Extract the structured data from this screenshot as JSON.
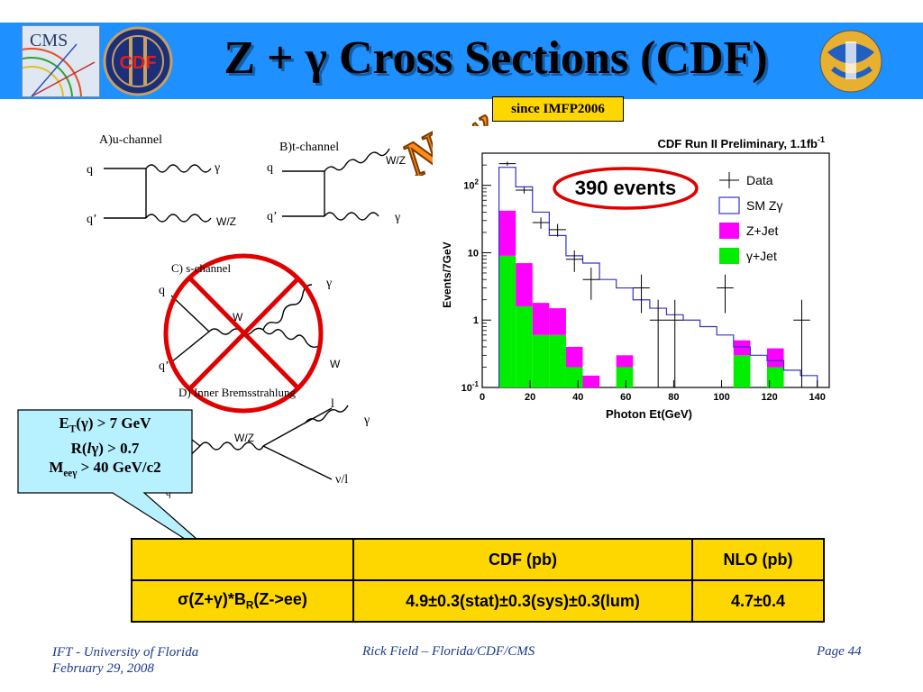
{
  "header": {
    "title": "Z + γ Cross Sections (CDF)",
    "badge_new": "New",
    "since": "since IMFP2006",
    "logos": [
      "cms-logo",
      "cdf-logo",
      "uf-logo"
    ],
    "cms_logo_text": "CMS",
    "cdf_logo_text": "CDF"
  },
  "diagrams": {
    "a": {
      "caption": "A)u-channel",
      "q_in": "q",
      "qbar_in": "q’",
      "out1": "γ",
      "out2": "W/Z"
    },
    "b": {
      "caption": "B)t-channel",
      "q_in": "q",
      "qbar_in": "q’",
      "out1": "W/Z",
      "out2": "γ"
    },
    "c": {
      "caption": "C) s-channel",
      "q_in": "q",
      "qbar_in": "q’",
      "mid": "W",
      "out1": "γ",
      "out2": "W"
    },
    "d": {
      "caption": "D) Inner Bremsstrahlung",
      "mid": "W/Z",
      "out1": "l",
      "out2": "γ",
      "out3": "ν/l",
      "in_letter": "q"
    }
  },
  "cuts": {
    "line1": {
      "pre": "E",
      "sub": "T",
      "post": "(γ) > 7 GeV"
    },
    "line2": {
      "pre": "R(",
      "italic": "l",
      "post": "γ) > 0.7"
    },
    "line3": {
      "pre": "M",
      "sub": "eeγ",
      "post": " > 40 GeV/c2"
    }
  },
  "events_label": "390 events",
  "chart_data": {
    "type": "bar",
    "title": "CDF Run II Preliminary, 1.1fb",
    "title_sup": "-1",
    "xlabel": "Photon Et(GeV)",
    "ylabel": "Events/7GeV",
    "xlim": [
      0,
      145
    ],
    "ylim": [
      0.1,
      300
    ],
    "y_scale": "log",
    "x_ticks": [
      0,
      20,
      40,
      60,
      80,
      100,
      120,
      140
    ],
    "y_ticks": [
      {
        "value": 0.1,
        "base": "10",
        "sup": "-1"
      },
      {
        "value": 1,
        "base": "1",
        "sup": ""
      },
      {
        "value": 10,
        "base": "10",
        "sup": ""
      },
      {
        "value": 100,
        "base": "10",
        "sup": "2"
      }
    ],
    "bin_width": 7,
    "bin_starts": [
      7,
      14,
      21,
      28,
      35,
      42,
      49,
      56,
      63,
      70,
      77,
      84,
      91,
      98,
      105,
      112,
      119,
      126,
      133
    ],
    "legend": [
      {
        "name": "Data",
        "style": "cross"
      },
      {
        "name": "SM Zγ",
        "style": "outline",
        "color": "#3333cc"
      },
      {
        "name": "Z+Jet",
        "style": "fill",
        "color": "#ff00ff"
      },
      {
        "name": "γ+Jet",
        "style": "fill",
        "color": "#00ee00"
      }
    ],
    "legend_position": "top-right",
    "series": [
      {
        "name": "γ+Jet",
        "values": [
          9,
          1.6,
          0.6,
          0.6,
          0.2,
          0,
          0,
          0.2,
          0,
          0,
          0,
          0,
          0,
          0,
          0.3,
          0,
          0.2,
          0,
          0
        ]
      },
      {
        "name": "Z+Jet",
        "values": [
          33,
          5.4,
          1.2,
          0.9,
          0.2,
          0.15,
          0,
          0.1,
          0,
          0,
          0,
          0,
          0,
          0,
          0.2,
          0,
          0.18,
          0,
          0
        ]
      },
      {
        "name": "SM Zγ",
        "values": [
          185,
          95,
          40,
          18,
          9,
          7,
          4,
          3,
          2,
          1.5,
          1.2,
          1,
          0.8,
          0.6,
          0.4,
          0.3,
          0.25,
          0.18,
          0.15
        ]
      }
    ],
    "data_points": {
      "x": [
        10.5,
        17.5,
        24.5,
        31.5,
        38.5,
        45.5,
        66.5,
        73.5,
        80.5,
        101.5,
        133.5
      ],
      "y": [
        210,
        85,
        28,
        22,
        8,
        4,
        3,
        1,
        1,
        3,
        1
      ]
    }
  },
  "table": {
    "header": [
      "",
      "CDF (pb)",
      "NLO (pb)"
    ],
    "row": {
      "label": {
        "pre": "σ(Z+γ)*B",
        "sub": "R",
        "post": "(Z->ee)"
      },
      "cdf": "4.9±0.3(stat)±0.3(sys)±0.3(lum)",
      "nlo": "4.7±0.4"
    }
  },
  "footer": {
    "left_line1": "IFT - University of Florida",
    "left_line2": "February 29, 2008",
    "center": "Rick Field – Florida/CDF/CMS",
    "right": "Page 44"
  },
  "colors": {
    "header_bar": "#1e90ff",
    "badge_fill": "#ff8c1a",
    "since_box": "#ffd700",
    "table_fill": "#ffd700",
    "red_mark": "#e00000",
    "footer_text": "#1b3a8c",
    "callout_fill": "#b7f0ff"
  }
}
